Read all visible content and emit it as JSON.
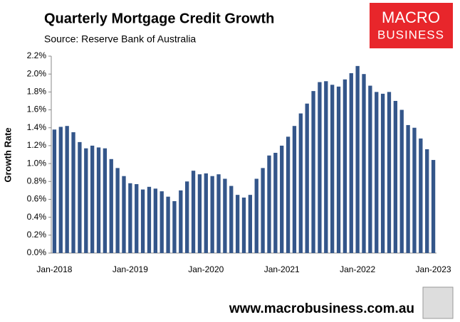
{
  "chart_data": {
    "type": "bar",
    "title": "Quarterly Mortgage Credit Growth",
    "subtitle": "Source: Reserve Bank of Australia",
    "y_label": "Growth Rate",
    "logo": [
      "MACRO",
      "BUSINESS"
    ],
    "footer": "www.macrobusiness.com.au",
    "color": "#34568a",
    "categories": [
      "Jan-2018",
      null,
      null,
      null,
      null,
      null,
      null,
      null,
      null,
      null,
      null,
      null,
      "Jan-2019",
      null,
      null,
      null,
      null,
      null,
      null,
      null,
      null,
      null,
      null,
      null,
      "Jan-2020",
      null,
      null,
      null,
      null,
      null,
      null,
      null,
      null,
      null,
      null,
      null,
      "Jan-2021",
      null,
      null,
      null,
      null,
      null,
      null,
      null,
      null,
      null,
      null,
      null,
      "Jan-2022",
      null,
      null,
      null,
      null,
      null,
      null,
      null,
      null,
      null,
      null,
      null,
      "Jan-2023"
    ],
    "values": [
      1.38,
      1.41,
      1.42,
      1.35,
      1.24,
      1.17,
      1.2,
      1.18,
      1.17,
      1.05,
      0.95,
      0.86,
      0.78,
      0.77,
      0.71,
      0.74,
      0.72,
      0.69,
      0.63,
      0.58,
      0.7,
      0.8,
      0.92,
      0.88,
      0.89,
      0.86,
      0.88,
      0.83,
      0.75,
      0.65,
      0.62,
      0.65,
      0.83,
      0.95,
      1.09,
      1.12,
      1.2,
      1.3,
      1.42,
      1.56,
      1.67,
      1.81,
      1.91,
      1.92,
      1.88,
      1.86,
      1.94,
      2.01,
      2.09,
      2.0,
      1.87,
      1.8,
      1.78,
      1.8,
      1.7,
      1.6,
      1.43,
      1.4,
      1.28,
      1.16,
      1.04
    ],
    "ylim": [
      0,
      2.2
    ],
    "yticks": [
      {
        "value": 0,
        "label": "0.0%"
      },
      {
        "value": 0.2,
        "label": "0.2%"
      },
      {
        "value": 0.4,
        "label": "0.4%"
      },
      {
        "value": 0.6,
        "label": "0.6%"
      },
      {
        "value": 0.8,
        "label": "0.8%"
      },
      {
        "value": 1.0,
        "label": "1.0%"
      },
      {
        "value": 1.2,
        "label": "1.2%"
      },
      {
        "value": 1.4,
        "label": "1.4%"
      },
      {
        "value": 1.6,
        "label": "1.6%"
      },
      {
        "value": 1.8,
        "label": "1.8%"
      },
      {
        "value": 2.0,
        "label": "2.0%"
      },
      {
        "value": 2.2,
        "label": "2.2%"
      }
    ],
    "grid": false
  }
}
